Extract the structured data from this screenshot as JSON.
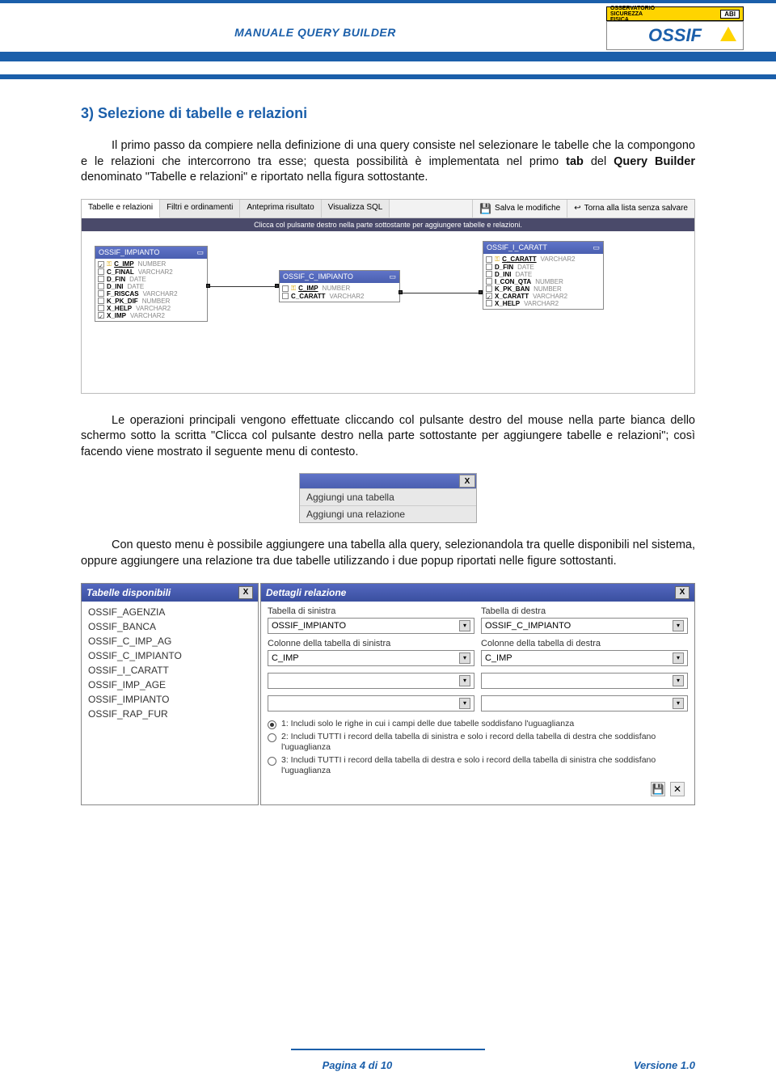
{
  "header": {
    "title": "MANUALE QUERY BUILDER"
  },
  "logo": {
    "l1": "OSSERVATORIO",
    "l2": "SICUREZZA",
    "l3": "FISICA",
    "abi": "ABI",
    "brand": "OSSIF"
  },
  "section": {
    "title": "3) Selezione di tabelle e relazioni"
  },
  "p1a": "Il primo passo da compiere nella definizione di una query consiste nel selezionare le tabelle che la compongono e le relazioni che intercorrono tra esse; questa possibilità è implementata nel primo ",
  "p1b": "tab",
  "p1c": " del ",
  "p1d": "Query Builder",
  "p1e": " denominato \"Tabelle e relazioni\" e riportato nella figura sottostante.",
  "p2": "Le operazioni principali vengono effettuate cliccando col pulsante destro del mouse nella parte bianca dello schermo sotto la scritta \"Clicca col pulsante destro nella parte sottostante per aggiungere tabelle e relazioni\"; così facendo viene mostrato il seguente menu di contesto.",
  "p3": "Con questo menu è possibile aggiungere una tabella alla query, selezionandola tra quelle disponibili nel sistema, oppure aggiungere una relazione tra due tabelle utilizzando i due popup riportati nelle figure sottostanti.",
  "qb": {
    "tabs": [
      "Tabelle e relazioni",
      "Filtri e ordinamenti",
      "Anteprima risultato",
      "Visualizza SQL"
    ],
    "right_save": "Salva le modifiche",
    "right_back": "Torna alla lista senza salvare",
    "hint": "Clicca col pulsante destro nella parte sottostante per aggiungere tabelle e relazioni.",
    "t1": {
      "name": "OSSIF_IMPIANTO",
      "cols": [
        {
          "c": true,
          "k": true,
          "n": "C_IMP",
          "t": "NUMBER"
        },
        {
          "c": false,
          "k": false,
          "n": "C_FINAL",
          "t": "VARCHAR2"
        },
        {
          "c": false,
          "k": false,
          "n": "D_FIN",
          "t": "DATE"
        },
        {
          "c": false,
          "k": false,
          "n": "D_INI",
          "t": "DATE"
        },
        {
          "c": false,
          "k": false,
          "n": "F_RISCAS",
          "t": "VARCHAR2"
        },
        {
          "c": false,
          "k": false,
          "n": "K_PK_DIF",
          "t": "NUMBER"
        },
        {
          "c": false,
          "k": false,
          "n": "X_HELP",
          "t": "VARCHAR2"
        },
        {
          "c": true,
          "k": false,
          "n": "X_IMP",
          "t": "VARCHAR2"
        }
      ]
    },
    "t2": {
      "name": "OSSIF_C_IMPIANTO",
      "cols": [
        {
          "c": false,
          "k": true,
          "n": "C_IMP",
          "t": "NUMBER"
        },
        {
          "c": false,
          "k": false,
          "n": "C_CARATT",
          "t": "VARCHAR2"
        }
      ]
    },
    "t3": {
      "name": "OSSIF_I_CARATT",
      "cols": [
        {
          "c": false,
          "k": true,
          "n": "C_CARATT",
          "t": "VARCHAR2"
        },
        {
          "c": false,
          "k": false,
          "n": "D_FIN",
          "t": "DATE"
        },
        {
          "c": false,
          "k": false,
          "n": "D_INI",
          "t": "DATE"
        },
        {
          "c": false,
          "k": false,
          "n": "I_CON_QTA",
          "t": "NUMBER"
        },
        {
          "c": false,
          "k": false,
          "n": "K_PK_BAN",
          "t": "NUMBER"
        },
        {
          "c": true,
          "k": false,
          "n": "X_CARATT",
          "t": "VARCHAR2"
        },
        {
          "c": false,
          "k": false,
          "n": "X_HELP",
          "t": "VARCHAR2"
        }
      ]
    }
  },
  "ctx": {
    "i1": "Aggiungi una tabella",
    "i2": "Aggiungi una relazione",
    "x": "X"
  },
  "dlg_left": {
    "title": "Tabelle disponibili",
    "x": "X",
    "items": [
      "OSSIF_AGENZIA",
      "OSSIF_BANCA",
      "OSSIF_C_IMP_AG",
      "OSSIF_C_IMPIANTO",
      "OSSIF_I_CARATT",
      "OSSIF_IMP_AGE",
      "OSSIF_IMPIANTO",
      "OSSIF_RAP_FUR"
    ]
  },
  "dlg_right": {
    "title": "Dettagli relazione",
    "x": "X",
    "lbl_tsx": "Tabella di sinistra",
    "lbl_tdx": "Tabella di destra",
    "val_tsx": "OSSIF_IMPIANTO",
    "val_tdx": "OSSIF_C_IMPIANTO",
    "lbl_csx": "Colonne della tabella di sinistra",
    "lbl_cdx": "Colonne della tabella di destra",
    "val_csx": "C_IMP",
    "val_cdx": "C_IMP",
    "r1": "1: Includi solo le righe in cui i campi delle due tabelle soddisfano l'uguaglianza",
    "r2": "2: Includi TUTTI i record della tabella di sinistra e solo i record della tabella di destra che soddisfano l'uguaglianza",
    "r3": "3: Includi TUTTI i record della tabella di destra e solo i record della tabella di sinistra che soddisfano l'uguaglianza",
    "save_sym": "💾",
    "cancel_sym": "✕"
  },
  "footer": {
    "page": "Pagina 4 di 10",
    "version": "Versione 1.0"
  }
}
